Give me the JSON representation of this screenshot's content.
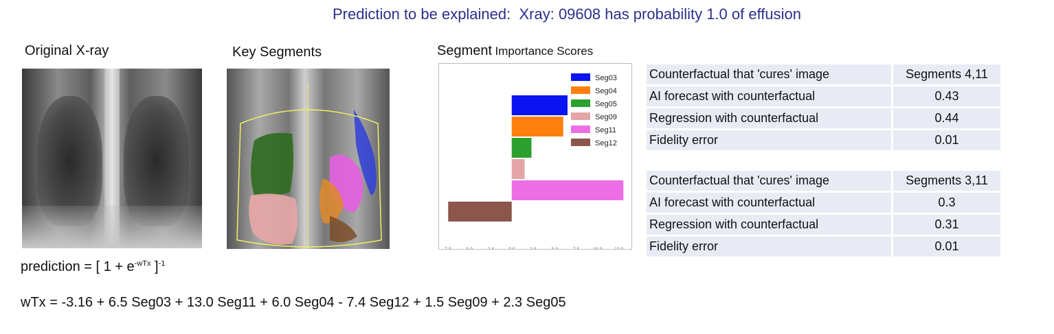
{
  "title": "Prediction to be explained:  Xray: 09608 has probability 1.0 of effusion",
  "panels": {
    "original_label": "Original X-ray",
    "segments_label": "Key Segments",
    "chart_label_part1": "Segment",
    "chart_label_part2": "Importance  Scores"
  },
  "colors": {
    "title": "#2b2f8c",
    "Seg03": "#0a14f0",
    "Seg04": "#ff7f0e",
    "Seg05": "#2ca02c",
    "Seg09": "#e3a5a5",
    "Seg11": "#ee6ee6",
    "Seg12": "#8c564b",
    "table_row": "#e9ebf4"
  },
  "chart_data": {
    "type": "bar",
    "orientation": "horizontal",
    "categories": [
      "Seg03",
      "Seg04",
      "Seg05",
      "Seg09",
      "Seg11",
      "Seg12"
    ],
    "values": [
      6.5,
      6.0,
      2.3,
      1.5,
      13.0,
      -7.4
    ],
    "xlim": [
      -7.5,
      12.5
    ],
    "xticks": [
      "-7.5",
      "-5.0",
      "-2.5",
      "0.0",
      "2.5",
      "5.0",
      "7.5",
      "10.0",
      "12.5"
    ],
    "legend_position": "top-right",
    "grid": false
  },
  "counterfactual_tables": [
    {
      "rows": [
        {
          "label": "Counterfactual that 'cures' image",
          "value": "Segments 4,11"
        },
        {
          "label": "AI forecast with counterfactual",
          "value": "0.43"
        },
        {
          "label": "Regression with counterfactual",
          "value": "0.44"
        },
        {
          "label": "Fidelity error",
          "value": "0.01"
        }
      ]
    },
    {
      "rows": [
        {
          "label": "Counterfactual that 'cures' image",
          "value": "Segments 3,11"
        },
        {
          "label": "AI forecast with counterfactual",
          "value": "0.3"
        },
        {
          "label": "Regression with counterfactual",
          "value": "0.31"
        },
        {
          "label": "Fidelity error",
          "value": "0.01"
        }
      ]
    }
  ],
  "formula": {
    "prediction_prefix": "prediction = [ 1 + e",
    "prediction_exponent": "-wTx",
    "prediction_close": " ]",
    "prediction_power": "-1",
    "linear": "wTx = -3.16 + 6.5 Seg03 + 13.0 Seg11 + 6.0 Seg04 - 7.4 Seg12 + 1.5 Seg09 + 2.3 Seg05"
  }
}
